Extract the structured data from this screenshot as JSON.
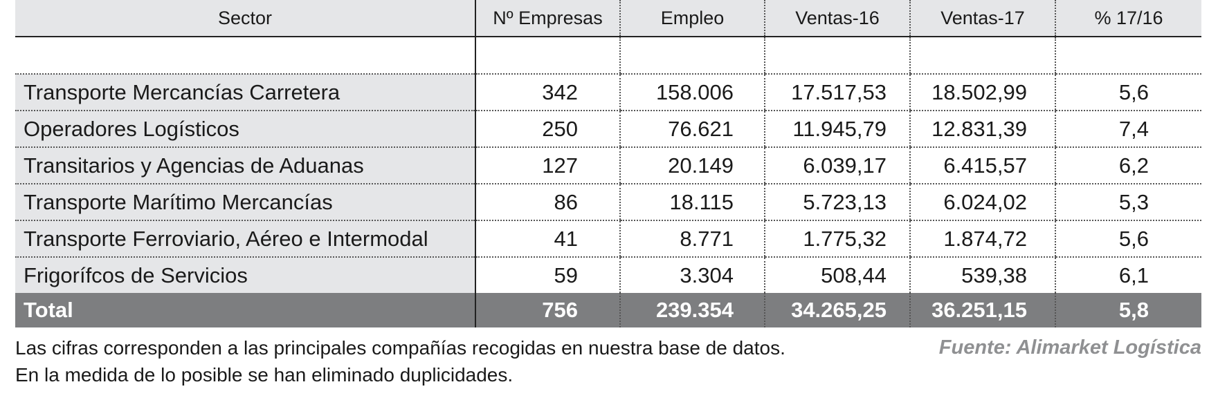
{
  "chart_data": {
    "type": "table",
    "columns": [
      "Sector",
      "Nº Empresas",
      "Empleo",
      "Ventas-16",
      "Ventas-17",
      "% 17/16"
    ],
    "rows": [
      {
        "sector": "Transporte Mercancías Carretera",
        "empresas": "342",
        "empleo": "158.006",
        "ventas16": "17.517,53",
        "ventas17": "18.502,99",
        "pct": "5,6"
      },
      {
        "sector": "Operadores Logísticos",
        "empresas": "250",
        "empleo": "76.621",
        "ventas16": "11.945,79",
        "ventas17": "12.831,39",
        "pct": "7,4"
      },
      {
        "sector": "Transitarios y Agencias de Aduanas",
        "empresas": "127",
        "empleo": "20.149",
        "ventas16": "6.039,17",
        "ventas17": "6.415,57",
        "pct": "6,2"
      },
      {
        "sector": "Transporte Marítimo Mercancías",
        "empresas": "86",
        "empleo": "18.115",
        "ventas16": "5.723,13",
        "ventas17": "6.024,02",
        "pct": "5,3"
      },
      {
        "sector": "Transporte Ferroviario, Aéreo e Intermodal",
        "empresas": "41",
        "empleo": "8.771",
        "ventas16": "1.775,32",
        "ventas17": "1.874,72",
        "pct": "5,6"
      },
      {
        "sector": "Frigorífcos de Servicios",
        "empresas": "59",
        "empleo": "3.304",
        "ventas16": "508,44",
        "ventas17": "539,38",
        "pct": "6,1"
      }
    ],
    "total": {
      "sector": "Total",
      "empresas": "756",
      "empleo": "239.354",
      "ventas16": "34.265,25",
      "ventas17": "36.251,15",
      "pct": "5,8"
    }
  },
  "footnote": {
    "line1": "Las cifras corresponden a las principales compañías recogidas en nuestra base de datos.",
    "line2": "En la medida de lo posible se han eliminado duplicidades."
  },
  "source": "Fuente: Alimarket Logística",
  "colors": {
    "header_bg": "#e5e6e8",
    "sector_bg": "#e5e6e8",
    "total_bg": "#7d7e80",
    "total_text": "#ffffff",
    "source_text": "#8f9092"
  }
}
